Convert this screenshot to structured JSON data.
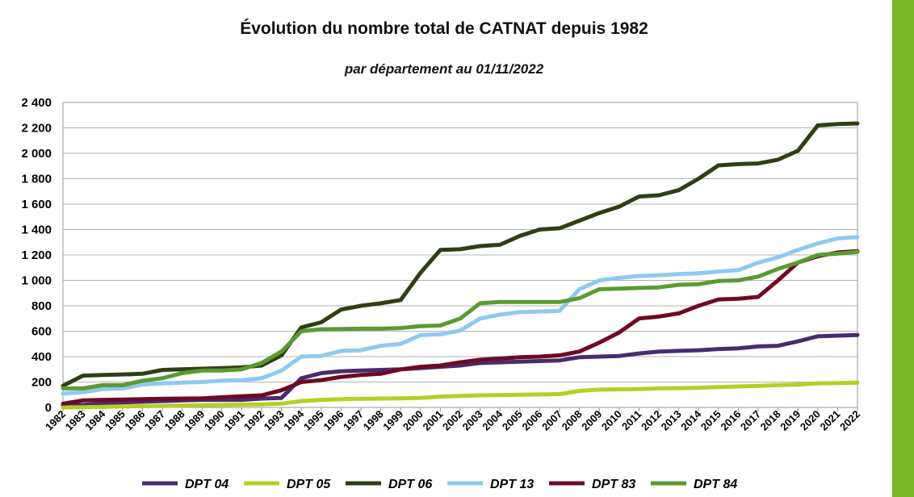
{
  "chart_data": {
    "type": "line",
    "title": "Évolution du nombre total de CATNAT depuis 1982",
    "subtitle": "par département au 01/11/2022",
    "x": [
      "1982",
      "1983",
      "1984",
      "1985",
      "1986",
      "1987",
      "1988",
      "1989",
      "1990",
      "1991",
      "1992",
      "1993",
      "1994",
      "1995",
      "1996",
      "1997",
      "1998",
      "1999",
      "2000",
      "2001",
      "2002",
      "2003",
      "2004",
      "2005",
      "2006",
      "2007",
      "2008",
      "2009",
      "2010",
      "2011",
      "2012",
      "2013",
      "2014",
      "2015",
      "2016",
      "2017",
      "2018",
      "2019",
      "2020",
      "2021",
      "2022"
    ],
    "ylim": [
      0,
      2400
    ],
    "yticks": [
      0,
      200,
      400,
      600,
      800,
      1000,
      1200,
      1400,
      1600,
      1800,
      2000,
      2200,
      2400
    ],
    "ytick_labels": [
      "0",
      "200",
      "400",
      "600",
      "800",
      "1 000",
      "1 200",
      "1 400",
      "1 600",
      "1 800",
      "2 000",
      "2 200",
      "2 400"
    ],
    "grid": "horizontal",
    "legend_position": "bottom",
    "series": [
      {
        "name": "DPT 04",
        "color": "#4a2a6e",
        "values": [
          15,
          20,
          30,
          40,
          45,
          50,
          55,
          60,
          60,
          60,
          70,
          75,
          230,
          270,
          285,
          290,
          295,
          300,
          310,
          320,
          330,
          350,
          355,
          360,
          365,
          370,
          395,
          400,
          405,
          425,
          440,
          445,
          450,
          460,
          465,
          480,
          485,
          520,
          560,
          565,
          570
        ]
      },
      {
        "name": "DPT 05",
        "color": "#b5cf23",
        "values": [
          0,
          2,
          5,
          8,
          10,
          12,
          15,
          18,
          20,
          22,
          25,
          30,
          50,
          60,
          65,
          68,
          70,
          72,
          75,
          85,
          90,
          95,
          98,
          100,
          102,
          105,
          130,
          140,
          142,
          145,
          150,
          152,
          155,
          160,
          165,
          170,
          175,
          180,
          190,
          192,
          195
        ]
      },
      {
        "name": "DPT 06",
        "color": "#2f3f14",
        "values": [
          170,
          250,
          255,
          260,
          265,
          295,
          300,
          305,
          310,
          315,
          330,
          410,
          630,
          670,
          770,
          800,
          820,
          845,
          1060,
          1240,
          1245,
          1270,
          1280,
          1350,
          1400,
          1410,
          1470,
          1530,
          1580,
          1660,
          1670,
          1710,
          1800,
          1905,
          1915,
          1920,
          1950,
          2020,
          2220,
          2230,
          2235
        ]
      },
      {
        "name": "DPT 13",
        "color": "#8fc9ef",
        "values": [
          110,
          120,
          145,
          150,
          180,
          190,
          195,
          200,
          210,
          215,
          230,
          290,
          400,
          405,
          445,
          450,
          485,
          500,
          570,
          575,
          605,
          700,
          730,
          750,
          755,
          760,
          930,
          1000,
          1020,
          1035,
          1040,
          1050,
          1055,
          1070,
          1080,
          1140,
          1180,
          1240,
          1290,
          1330,
          1340
        ]
      },
      {
        "name": "DPT 83",
        "color": "#6e0a24",
        "values": [
          30,
          55,
          60,
          62,
          65,
          68,
          70,
          72,
          80,
          88,
          95,
          135,
          200,
          215,
          240,
          255,
          265,
          300,
          320,
          330,
          355,
          375,
          385,
          395,
          400,
          410,
          440,
          510,
          590,
          700,
          715,
          740,
          800,
          850,
          855,
          870,
          1000,
          1140,
          1190,
          1220,
          1230
        ]
      },
      {
        "name": "DPT 84",
        "color": "#5a9a32",
        "values": [
          150,
          150,
          175,
          175,
          210,
          230,
          270,
          290,
          290,
          300,
          350,
          440,
          600,
          615,
          618,
          620,
          620,
          625,
          640,
          645,
          700,
          820,
          830,
          830,
          830,
          830,
          860,
          930,
          935,
          940,
          945,
          965,
          970,
          995,
          1000,
          1030,
          1090,
          1140,
          1200,
          1210,
          1225
        ]
      }
    ]
  }
}
